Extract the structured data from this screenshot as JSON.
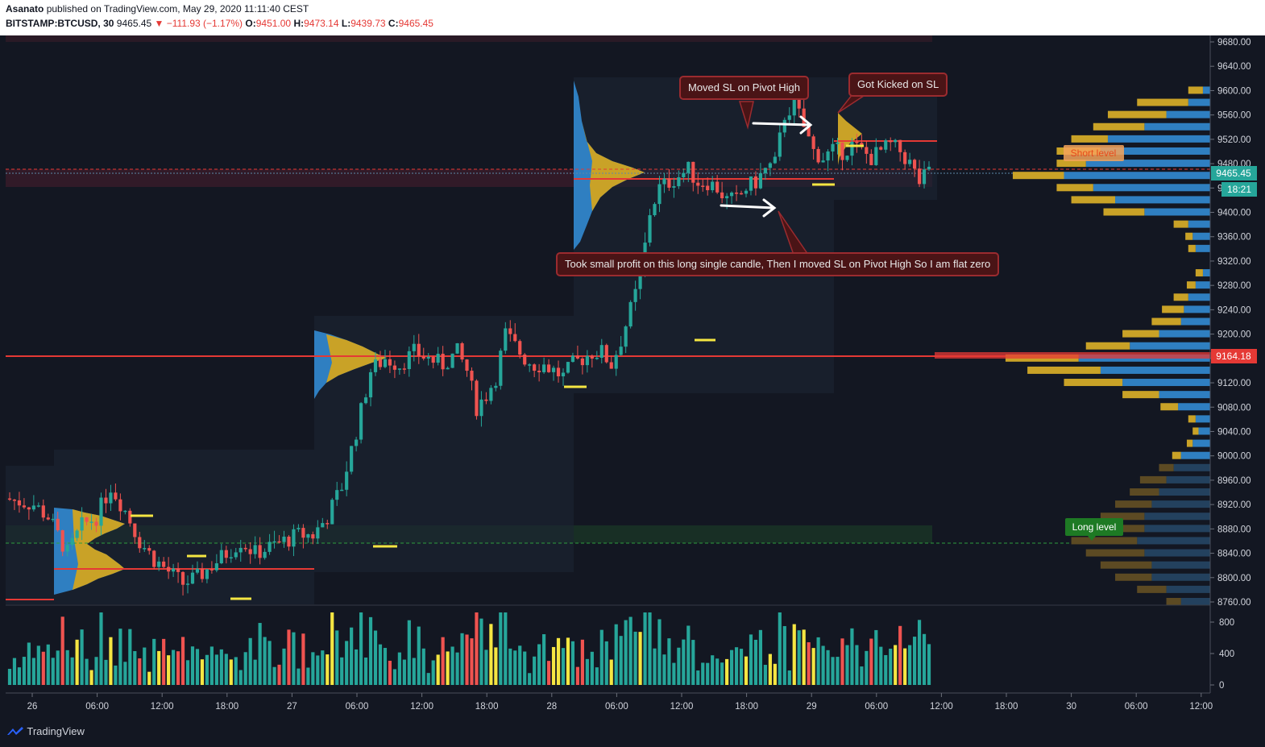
{
  "header": {
    "author": "Asanato",
    "published_text": "published on TradingView.com, May 29, 2020 11:11:40 CEST",
    "symbol": "BITSTAMP:BTCUSD, 30",
    "last_price": "9465.45",
    "change": "▼ −111.93 (−1.17%)",
    "open_label": "O:",
    "open": "9451.00",
    "high_label": "H:",
    "high": "9473.14",
    "low_label": "L:",
    "low": "9439.73",
    "close_label": "C:",
    "close": "9465.45"
  },
  "annotations": {
    "callout_moved_sl": "Moved SL on Pivot High",
    "callout_got_kicked": "Got Kicked on SL",
    "callout_took_profit": "Took small profit on this long single candle, Then I moved SL on Pivot High So I am flat zero",
    "short_level": "Short level",
    "long_level": "Long level"
  },
  "price_axis": {
    "last_price_tag": "9465.45",
    "countdown_tag": "18:21",
    "red_line_tag": "9164.18"
  },
  "footer": {
    "brand": "TradingView"
  },
  "colors": {
    "background": "#131722",
    "bull": "#26a69a",
    "bear": "#ef5350",
    "volume_profile_gold": "#c9a227",
    "volume_profile_blue": "#2f7fc1",
    "red_line": "#e53935",
    "long_zone": "#1b3a26",
    "short_zone": "#3a1b2a"
  },
  "chart_data": {
    "type": "candlestick",
    "xaxis_labels": [
      "26",
      "06:00",
      "12:00",
      "18:00",
      "27",
      "06:00",
      "12:00",
      "18:00",
      "28",
      "06:00",
      "12:00",
      "18:00",
      "29",
      "06:00",
      "12:00",
      "18:00",
      "30",
      "06:00",
      "12:00"
    ],
    "yaxis_labels": [
      9680,
      9640,
      9600,
      9560,
      9520,
      9480,
      9440,
      9400,
      9360,
      9320,
      9280,
      9240,
      9200,
      9160,
      9120,
      9080,
      9040,
      9000,
      8960,
      8920,
      8880,
      8840,
      8800,
      8760
    ],
    "ylim": [
      8760,
      9690
    ],
    "volume_axis_labels": [
      800,
      400,
      0
    ],
    "key_levels": {
      "last_price": 9465.45,
      "red_support": 9164.18,
      "short_level": 9478,
      "long_level": 8858
    },
    "price_path": [
      [
        0,
        8930
      ],
      [
        6,
        8920
      ],
      [
        9,
        8900
      ],
      [
        13,
        8840
      ],
      [
        16,
        8885
      ],
      [
        19,
        8900
      ],
      [
        22,
        8950
      ],
      [
        25,
        8910
      ],
      [
        28,
        8860
      ],
      [
        31,
        8830
      ],
      [
        34,
        8810
      ],
      [
        37,
        8790
      ],
      [
        40,
        8800
      ],
      [
        43,
        8820
      ],
      [
        46,
        8840
      ],
      [
        49,
        8860
      ],
      [
        52,
        8840
      ],
      [
        55,
        8850
      ],
      [
        58,
        8860
      ],
      [
        61,
        8870
      ],
      [
        64,
        8870
      ],
      [
        67,
        8900
      ],
      [
        70,
        8950
      ],
      [
        73,
        9040
      ],
      [
        76,
        9140
      ],
      [
        79,
        9160
      ],
      [
        82,
        9150
      ],
      [
        85,
        9170
      ],
      [
        88,
        9160
      ],
      [
        91,
        9150
      ],
      [
        94,
        9170
      ],
      [
        96,
        9140
      ],
      [
        98,
        9080
      ],
      [
        100,
        9100
      ],
      [
        102,
        9130
      ],
      [
        104,
        9200
      ],
      [
        106,
        9180
      ],
      [
        108,
        9160
      ],
      [
        110,
        9150
      ],
      [
        112,
        9150
      ],
      [
        114,
        9140
      ],
      [
        116,
        9130
      ],
      [
        118,
        9150
      ],
      [
        120,
        9160
      ],
      [
        122,
        9170
      ],
      [
        124,
        9170
      ],
      [
        126,
        9150
      ],
      [
        128,
        9190
      ],
      [
        130,
        9240
      ],
      [
        132,
        9290
      ],
      [
        134,
        9400
      ],
      [
        136,
        9440
      ],
      [
        138,
        9450
      ],
      [
        140,
        9460
      ],
      [
        142,
        9470
      ],
      [
        144,
        9450
      ],
      [
        146,
        9450
      ],
      [
        148,
        9440
      ],
      [
        150,
        9420
      ],
      [
        152,
        9420
      ],
      [
        154,
        9440
      ],
      [
        156,
        9450
      ],
      [
        158,
        9470
      ],
      [
        160,
        9480
      ],
      [
        162,
        9560
      ],
      [
        164,
        9580
      ],
      [
        166,
        9540
      ],
      [
        168,
        9500
      ],
      [
        170,
        9490
      ],
      [
        172,
        9500
      ],
      [
        174,
        9500
      ],
      [
        176,
        9510
      ],
      [
        178,
        9500
      ],
      [
        180,
        9490
      ],
      [
        182,
        9500
      ],
      [
        184,
        9510
      ],
      [
        186,
        9500
      ],
      [
        188,
        9480
      ],
      [
        190,
        9450
      ],
      [
        192,
        9465
      ]
    ],
    "volume_levels": [
      [
        9600,
        0.1,
        0.05
      ],
      [
        9580,
        0.35,
        0.15
      ],
      [
        9560,
        0.4,
        0.3
      ],
      [
        9540,
        0.35,
        0.45
      ],
      [
        9520,
        0.25,
        0.7
      ],
      [
        9500,
        0.3,
        0.75
      ],
      [
        9480,
        0.2,
        0.85
      ],
      [
        9460,
        0.35,
        1.0
      ],
      [
        9440,
        0.25,
        0.8
      ],
      [
        9420,
        0.3,
        0.65
      ],
      [
        9400,
        0.28,
        0.45
      ],
      [
        9380,
        0.1,
        0.15
      ],
      [
        9360,
        0.05,
        0.12
      ],
      [
        9340,
        0.05,
        0.1
      ],
      [
        9300,
        0.05,
        0.05
      ],
      [
        9280,
        0.06,
        0.1
      ],
      [
        9260,
        0.1,
        0.15
      ],
      [
        9240,
        0.15,
        0.18
      ],
      [
        9220,
        0.2,
        0.2
      ],
      [
        9200,
        0.25,
        0.35
      ],
      [
        9180,
        0.3,
        0.55
      ],
      [
        9160,
        0.5,
        0.9
      ],
      [
        9140,
        0.5,
        0.75
      ],
      [
        9120,
        0.4,
        0.6
      ],
      [
        9100,
        0.25,
        0.35
      ],
      [
        9080,
        0.12,
        0.22
      ],
      [
        9060,
        0.05,
        0.1
      ],
      [
        9040,
        0.04,
        0.08
      ],
      [
        9020,
        0.04,
        0.12
      ],
      [
        9000,
        0.06,
        0.2
      ],
      [
        8980,
        0.1,
        0.25
      ],
      [
        8960,
        0.18,
        0.3
      ],
      [
        8940,
        0.2,
        0.35
      ],
      [
        8920,
        0.25,
        0.4
      ],
      [
        8900,
        0.3,
        0.45
      ],
      [
        8880,
        0.35,
        0.45
      ],
      [
        8860,
        0.45,
        0.5
      ],
      [
        8840,
        0.4,
        0.45
      ],
      [
        8820,
        0.35,
        0.4
      ],
      [
        8800,
        0.25,
        0.4
      ],
      [
        8780,
        0.2,
        0.3
      ],
      [
        8760,
        0.1,
        0.2
      ]
    ]
  }
}
